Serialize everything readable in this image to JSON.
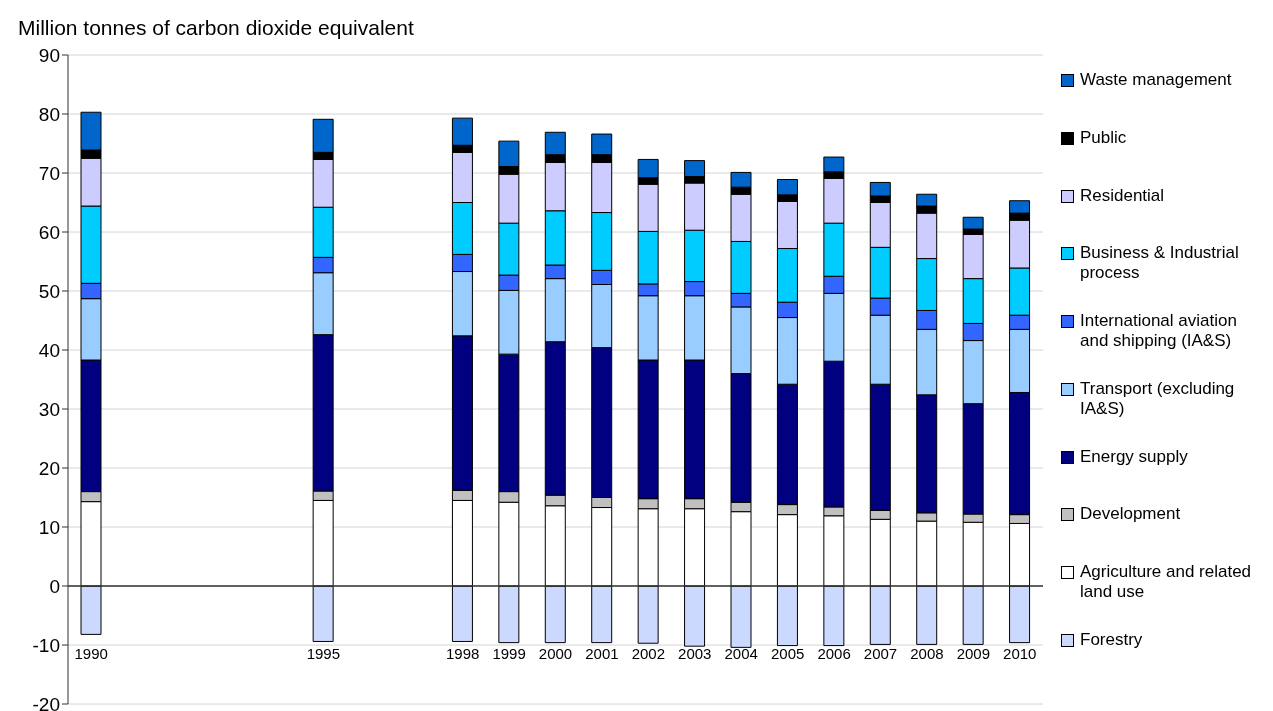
{
  "chart_data": {
    "type": "bar",
    "stacked": true,
    "ylabel": "Million tonnes of carbon dioxide equivalent",
    "categories": [
      "1990",
      null,
      null,
      null,
      null,
      "1995",
      null,
      null,
      "1998",
      "1999",
      "2000",
      "2001",
      "2002",
      "2003",
      "2004",
      "2005",
      "2006",
      "2007",
      "2008",
      "2009",
      "2010"
    ],
    "ylim": [
      -20,
      90
    ],
    "yticks": [
      -20,
      -10,
      0,
      10,
      20,
      30,
      40,
      50,
      60,
      70,
      80,
      90
    ],
    "grid": "y",
    "legend": "right",
    "series": [
      {
        "name": "Forestry",
        "color": "#ccd9ff",
        "values": [
          -8.2,
          null,
          null,
          null,
          null,
          -9.4,
          null,
          null,
          -9.4,
          -9.6,
          -9.6,
          -9.6,
          -9.7,
          -10.2,
          -10.4,
          -10.1,
          -10.1,
          -9.9,
          -9.9,
          -9.9,
          -9.6
        ]
      },
      {
        "name": "Agriculture and related land use",
        "color": "#ffffff",
        "values": [
          14.3,
          null,
          null,
          null,
          null,
          14.5,
          null,
          null,
          14.5,
          14.2,
          13.6,
          13.3,
          13.1,
          13.1,
          12.6,
          12.1,
          11.9,
          11.3,
          11.0,
          10.8,
          10.6
        ]
      },
      {
        "name": "Development",
        "color": "#c0c0c0",
        "values": [
          1.7,
          null,
          null,
          null,
          null,
          1.6,
          null,
          null,
          1.7,
          1.8,
          1.8,
          1.7,
          1.7,
          1.7,
          1.6,
          1.7,
          1.5,
          1.5,
          1.4,
          1.4,
          1.5
        ]
      },
      {
        "name": "Energy supply",
        "color": "#000080",
        "values": [
          22.3,
          null,
          null,
          null,
          null,
          26.5,
          null,
          null,
          26.2,
          23.3,
          26.0,
          25.4,
          23.5,
          23.5,
          21.8,
          20.4,
          24.7,
          21.4,
          20.0,
          18.7,
          20.7
        ]
      },
      {
        "name": "Transport (excluding IA&S)",
        "color": "#99ccff",
        "values": [
          10.4,
          null,
          null,
          null,
          null,
          10.5,
          null,
          null,
          10.9,
          10.8,
          10.7,
          10.7,
          10.9,
          10.9,
          11.3,
          11.3,
          11.5,
          11.7,
          11.1,
          10.7,
          10.7
        ]
      },
      {
        "name": "International aviation and shipping (IA&S)",
        "color": "#3366ff",
        "values": [
          2.6,
          null,
          null,
          null,
          null,
          2.6,
          null,
          null,
          2.9,
          2.6,
          2.3,
          2.4,
          2.0,
          2.4,
          2.3,
          2.6,
          2.9,
          2.9,
          3.2,
          2.9,
          2.4
        ]
      },
      {
        "name": "Business & Industrial process",
        "color": "#00ccff",
        "values": [
          13.1,
          null,
          null,
          null,
          null,
          8.5,
          null,
          null,
          8.8,
          8.8,
          9.2,
          9.8,
          8.9,
          8.7,
          8.8,
          9.1,
          9.0,
          8.6,
          8.8,
          7.6,
          8.0
        ]
      },
      {
        "name": "Residential",
        "color": "#ccccff",
        "values": [
          8.1,
          null,
          null,
          null,
          null,
          8.1,
          null,
          null,
          8.5,
          8.3,
          8.2,
          8.5,
          8.0,
          8.0,
          8.0,
          8.0,
          7.6,
          7.6,
          7.7,
          7.5,
          8.1
        ]
      },
      {
        "name": "Public",
        "color": "#000000",
        "values": [
          1.4,
          null,
          null,
          null,
          null,
          1.2,
          null,
          null,
          1.2,
          1.3,
          1.3,
          1.3,
          1.1,
          1.1,
          1.2,
          1.1,
          1.1,
          1.1,
          1.2,
          0.9,
          1.2
        ]
      },
      {
        "name": "Waste management",
        "color": "#0066cc",
        "values": [
          6.4,
          null,
          null,
          null,
          null,
          5.6,
          null,
          null,
          4.6,
          4.3,
          3.8,
          3.5,
          3.1,
          2.7,
          2.5,
          2.6,
          2.5,
          2.3,
          2.0,
          2.0,
          2.1
        ]
      }
    ]
  }
}
